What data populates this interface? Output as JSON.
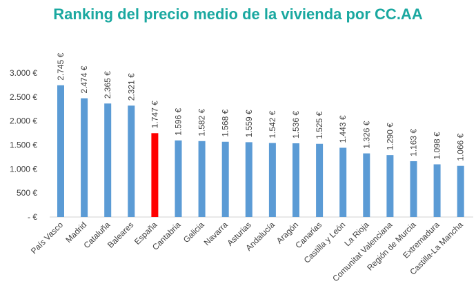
{
  "chart_data": {
    "type": "bar",
    "title": "Ranking del precio medio de la vivienda por CC.AA",
    "xlabel": "",
    "ylabel": "",
    "ylim": [
      0,
      3000
    ],
    "yticks": [
      0,
      500,
      1000,
      1500,
      2000,
      2500,
      3000
    ],
    "ytick_labels": [
      "-  €",
      "500 €",
      "1.000 €",
      "1.500 €",
      "2.000 €",
      "2.500 €",
      "3.000 €"
    ],
    "grid": false,
    "categories": [
      "País Vasco",
      "Madrid",
      "Cataluña",
      "Baleares",
      "España",
      "Cantabria",
      "Galicia",
      "Navarra",
      "Asturias",
      "Andalucía",
      "Aragón",
      "Canarias",
      "Castilla y León",
      "La Rioja",
      "Comunitat Valenciana",
      "Región de Murcia",
      "Extremadura",
      "Castilla-La Mancha"
    ],
    "values": [
      2745,
      2474,
      2365,
      2321,
      1747,
      1596,
      1582,
      1568,
      1559,
      1542,
      1536,
      1525,
      1443,
      1326,
      1290,
      1163,
      1098,
      1066
    ],
    "data_labels": [
      "2.745 €",
      "2.474 €",
      "2.365 €",
      "2.321 €",
      "1.747 €",
      "1.596 €",
      "1.582 €",
      "1.568 €",
      "1.559 €",
      "1.542 €",
      "1.536 €",
      "1.525 €",
      "1.443 €",
      "1.326 €",
      "1.290 €",
      "1.163 €",
      "1.098 €",
      "1.066 €"
    ],
    "colors": {
      "default": "#5b9bd5",
      "highlight": "#ff0000",
      "highlight_category": "España",
      "title": "#1aa8a0"
    }
  }
}
